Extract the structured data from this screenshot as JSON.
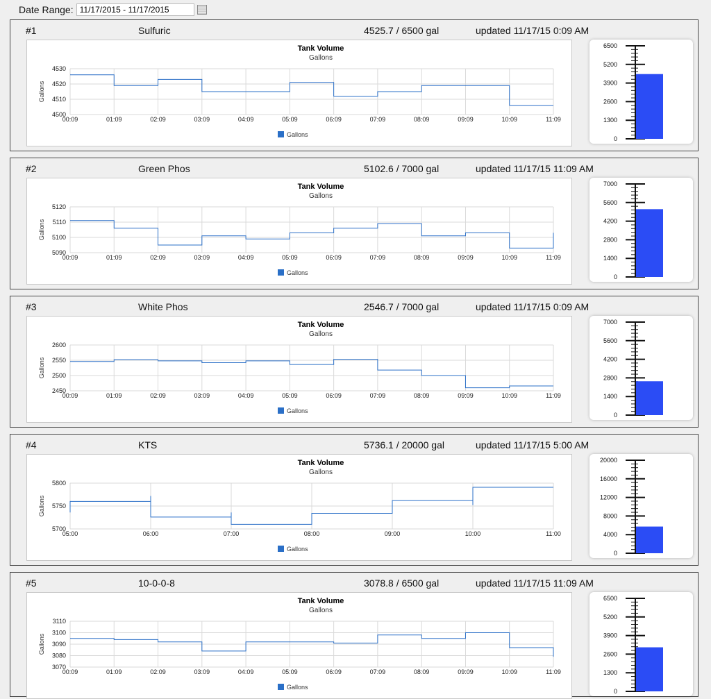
{
  "date_range": {
    "label": "Date Range:",
    "value": "11/17/2015 - 11/17/2015"
  },
  "colors": {
    "line": "#2a6fc7",
    "legend": "#2a6fc7",
    "gauge": "#2b4cf5",
    "grid": "#d9d9d9"
  },
  "tanks": [
    {
      "index": "#1",
      "name": "Sulfuric",
      "volume": "4525.7 / 6500 gal",
      "updated": "updated 11/17/15 0:09 AM",
      "chart_data": {
        "type": "line",
        "title": "Tank Volume",
        "subtitle": "Gallons",
        "ylabel": "Gallons",
        "ylim": [
          4500,
          4530
        ],
        "yticks": [
          "4500",
          "4510",
          "4520",
          "4530"
        ],
        "xticks": [
          "00:09",
          "01:09",
          "02:09",
          "03:09",
          "04:09",
          "05:09",
          "06:09",
          "07:09",
          "08:09",
          "09:09",
          "10:09",
          "11:09"
        ],
        "legend": "Gallons",
        "step": true,
        "points": [
          [
            0,
            4526
          ],
          [
            1,
            4519
          ],
          [
            2,
            4523
          ],
          [
            3,
            4515
          ],
          [
            4,
            4515
          ],
          [
            5,
            4521
          ],
          [
            6,
            4512
          ],
          [
            7,
            4515
          ],
          [
            8,
            4519
          ],
          [
            9,
            4519
          ],
          [
            10,
            4506
          ],
          [
            11,
            4506
          ]
        ]
      },
      "gauge": {
        "ticks": [
          "0",
          "1300",
          "2600",
          "3900",
          "5200",
          "6500"
        ],
        "max": 6500,
        "value": 4525.7
      }
    },
    {
      "index": "#2",
      "name": "Green Phos",
      "volume": "5102.6 / 7000 gal",
      "updated": "updated 11/17/15 11:09 AM",
      "chart_data": {
        "type": "line",
        "title": "Tank Volume",
        "subtitle": "Gallons",
        "ylabel": "Gallons",
        "ylim": [
          5090,
          5120
        ],
        "yticks": [
          "5090",
          "5100",
          "5110",
          "5120"
        ],
        "xticks": [
          "00:09",
          "01:09",
          "02:09",
          "03:09",
          "04:09",
          "05:09",
          "06:09",
          "07:09",
          "08:09",
          "09:09",
          "10:09",
          "11:09"
        ],
        "legend": "Gallons",
        "step": true,
        "points": [
          [
            0,
            5111
          ],
          [
            1,
            5106
          ],
          [
            2,
            5095
          ],
          [
            3,
            5101
          ],
          [
            4,
            5099
          ],
          [
            5,
            5103
          ],
          [
            6,
            5106
          ],
          [
            7,
            5109
          ],
          [
            8,
            5101
          ],
          [
            9,
            5103
          ],
          [
            10,
            5093
          ],
          [
            11,
            5103
          ]
        ]
      },
      "gauge": {
        "ticks": [
          "0",
          "1400",
          "2800",
          "4200",
          "5600",
          "7000"
        ],
        "max": 7000,
        "value": 5102.6
      }
    },
    {
      "index": "#3",
      "name": "White Phos",
      "volume": "2546.7 / 7000 gal",
      "updated": "updated 11/17/15 0:09 AM",
      "chart_data": {
        "type": "line",
        "title": "Tank Volume",
        "subtitle": "Gallons",
        "ylabel": "Gallons",
        "ylim": [
          2450,
          2600
        ],
        "yticks": [
          "2450",
          "2500",
          "2550",
          "2600"
        ],
        "xticks": [
          "00:09",
          "01:09",
          "02:09",
          "03:09",
          "04:09",
          "05:09",
          "06:09",
          "07:09",
          "08:09",
          "09:09",
          "10:09",
          "11:09"
        ],
        "legend": "Gallons",
        "step": true,
        "points": [
          [
            0,
            2546
          ],
          [
            1,
            2552
          ],
          [
            2,
            2548
          ],
          [
            3,
            2542
          ],
          [
            4,
            2548
          ],
          [
            5,
            2536
          ],
          [
            6,
            2553
          ],
          [
            7,
            2518
          ],
          [
            8,
            2500
          ],
          [
            9,
            2460
          ],
          [
            10,
            2466
          ],
          [
            11,
            2466
          ]
        ]
      },
      "gauge": {
        "ticks": [
          "0",
          "1400",
          "2800",
          "4200",
          "5600",
          "7000"
        ],
        "max": 7000,
        "value": 2546.7
      }
    },
    {
      "index": "#4",
      "name": "KTS",
      "volume": "5736.1 / 20000 gal",
      "updated": "updated 11/17/15 5:00 AM",
      "chart_data": {
        "type": "line",
        "title": "Tank Volume",
        "subtitle": "Gallons",
        "ylabel": "Gallons",
        "ylim": [
          5700,
          5800
        ],
        "yticks": [
          "5700",
          "5750",
          "5800"
        ],
        "xticks": [
          "05:00",
          "06:00",
          "07:00",
          "08:00",
          "09:00",
          "10:00",
          "11:00"
        ],
        "legend": "Gallons",
        "step": true,
        "points": [
          [
            0,
            5736
          ],
          [
            0,
            5760
          ],
          [
            1,
            5760
          ],
          [
            1,
            5772
          ],
          [
            1,
            5726
          ],
          [
            2,
            5726
          ],
          [
            2,
            5736
          ],
          [
            2,
            5710
          ],
          [
            3,
            5710
          ],
          [
            3,
            5734
          ],
          [
            4,
            5734
          ],
          [
            4,
            5762
          ],
          [
            5,
            5762
          ],
          [
            5,
            5752
          ],
          [
            5,
            5791
          ],
          [
            6,
            5791
          ]
        ]
      },
      "gauge": {
        "ticks": [
          "0",
          "4000",
          "8000",
          "12000",
          "16000",
          "20000"
        ],
        "max": 20000,
        "value": 5736.1
      }
    },
    {
      "index": "#5",
      "name": "10-0-0-8",
      "volume": "3078.8 / 6500 gal",
      "updated": "updated 11/17/15 11:09 AM",
      "chart_data": {
        "type": "line",
        "title": "Tank Volume",
        "subtitle": "Gallons",
        "ylabel": "Gallons",
        "ylim": [
          3070,
          3110
        ],
        "yticks": [
          "3070",
          "3080",
          "3090",
          "3100",
          "3110"
        ],
        "xticks": [
          "00:09",
          "01:09",
          "02:09",
          "03:09",
          "04:09",
          "05:09",
          "06:09",
          "07:09",
          "08:09",
          "09:09",
          "10:09",
          "11:09"
        ],
        "legend": "Gallons",
        "step": true,
        "points": [
          [
            0,
            3095
          ],
          [
            1,
            3094
          ],
          [
            2,
            3092
          ],
          [
            3,
            3084
          ],
          [
            4,
            3092
          ],
          [
            5,
            3092
          ],
          [
            6,
            3091
          ],
          [
            7,
            3098
          ],
          [
            8,
            3095
          ],
          [
            9,
            3100
          ],
          [
            10,
            3087
          ],
          [
            11,
            3079
          ]
        ]
      },
      "gauge": {
        "ticks": [
          "0",
          "1300",
          "2600",
          "3900",
          "5200",
          "6500"
        ],
        "max": 6500,
        "value": 3078.8
      }
    }
  ]
}
